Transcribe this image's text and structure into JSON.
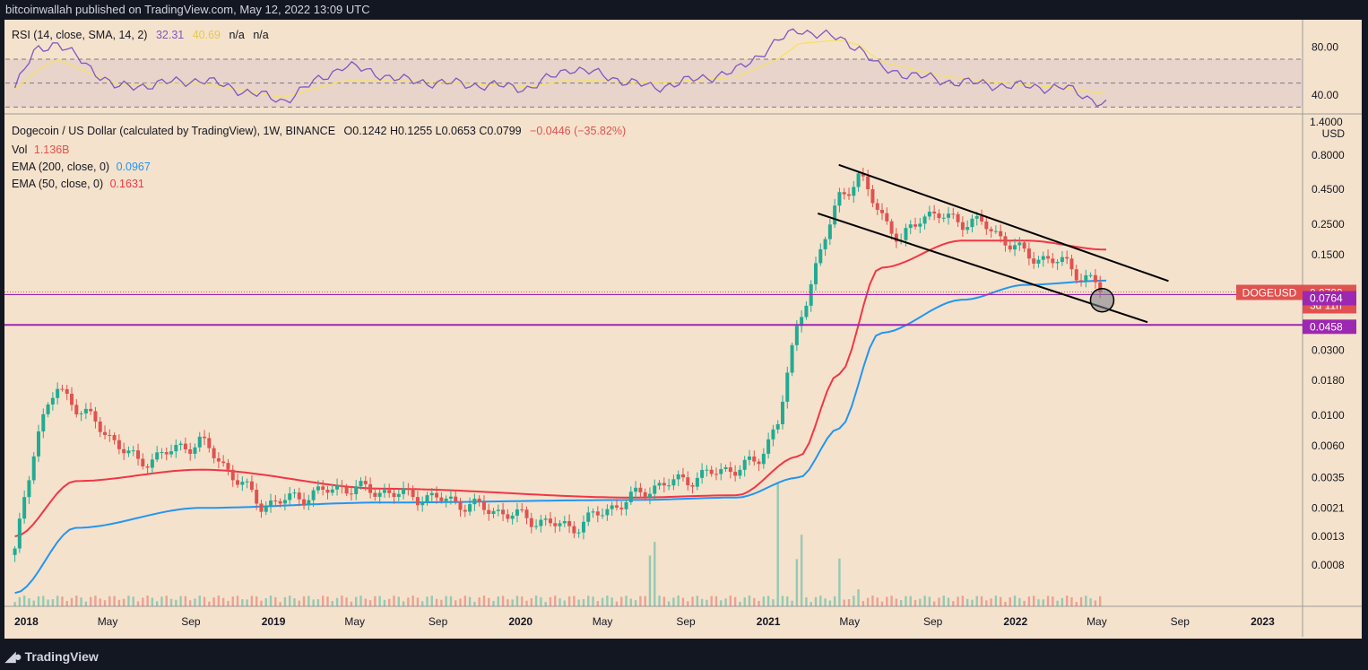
{
  "header": {
    "published": "bitcoinwallah published on TradingView.com, May 12, 2022 13:09 UTC"
  },
  "footer": {
    "brand": "TradingView",
    "logo_icon": "tradingview-logo-icon"
  },
  "rsi_legend": {
    "name": "RSI (14, close, SMA, 14, 2)",
    "v1": "32.31",
    "v2": "40.69",
    "v3": "n/a",
    "v4": "n/a"
  },
  "main_legend": {
    "symbol": "Dogecoin / US Dollar (calculated by TradingView), 1W, BINANCE",
    "ohlc": "O0.1242  H0.1255  L0.0653  C0.0799",
    "change": "−0.0446 (−35.82%)",
    "vol_label": "Vol",
    "vol_value": "1.136B",
    "ema200_label": "EMA (200, close, 0)",
    "ema200_value": "0.0967",
    "ema50_label": "EMA (50, close, 0)",
    "ema50_value": "0.1631"
  },
  "price_axis": {
    "currency": "USD",
    "top_label": "1.4000"
  },
  "rsi_axis_labels": [
    "80.00",
    "40.00"
  ],
  "price_tag": {
    "symbol": "DOGEUSD",
    "price": "0.0799",
    "countdown": "3d 11h"
  },
  "level_tags": [
    "0.0764",
    "0.0458"
  ],
  "colors": {
    "background": "#f5e2cc",
    "up": "#22ab94",
    "down": "#e0524f",
    "ema50": "#f23645",
    "ema200": "#2196f3",
    "rsi": "#7e57c2",
    "rsi_sma": "#f7e06a",
    "level": "#9c27b0",
    "price_tag": "#e0524f"
  },
  "chart_data": [
    {
      "type": "line",
      "title": "RSI (14, close, SMA, 14, 2)",
      "ylim": [
        25,
        100
      ],
      "bands": [
        70,
        50,
        30
      ],
      "x": [
        "2017-12",
        "2018-01",
        "2018-02",
        "2018-05",
        "2018-09",
        "2019-01",
        "2019-04",
        "2019-07",
        "2020-01",
        "2020-03",
        "2020-07",
        "2020-11",
        "2021-01",
        "2021-02",
        "2021-04",
        "2021-05",
        "2021-06",
        "2021-09",
        "2021-12",
        "2022-03",
        "2022-05"
      ],
      "series": [
        {
          "name": "RSI",
          "values": [
            46,
            78,
            84,
            46,
            53,
            35,
            65,
            52,
            46,
            63,
            46,
            60,
            85,
            95,
            87,
            80,
            62,
            52,
            48,
            46,
            32
          ]
        },
        {
          "name": "SMA",
          "values": [
            44,
            60,
            70,
            49,
            50,
            38,
            52,
            52,
            47,
            53,
            50,
            55,
            70,
            83,
            86,
            82,
            68,
            56,
            50,
            46,
            41
          ]
        }
      ],
      "ytick_labels": [
        "80.00",
        "40.00"
      ]
    },
    {
      "type": "candlestick",
      "title": "Dogecoin / US Dollar (calculated by TradingView), 1W, BINANCE",
      "ylog": true,
      "ylim": [
        0.0004,
        1.4
      ],
      "x_ticks": [
        "2018",
        "May",
        "Sep",
        "2019",
        "May",
        "Sep",
        "2020",
        "May",
        "Sep",
        "2021",
        "May",
        "Sep",
        "2022",
        "May",
        "Sep",
        "2023"
      ],
      "y_ticks": [
        "0.8000",
        "0.4500",
        "0.2500",
        "0.1500",
        "0.0300",
        "0.0180",
        "0.0100",
        "0.0060",
        "0.0035",
        "0.0021",
        "0.0013",
        "0.0008"
      ],
      "key_points": {
        "x": [
          "2017-12",
          "2018-01",
          "2018-02",
          "2018-06",
          "2018-09",
          "2018-12",
          "2019-04",
          "2019-09",
          "2020-03",
          "2020-07",
          "2020-12",
          "2021-01",
          "2021-02",
          "2021-04",
          "2021-05",
          "2021-07",
          "2021-08",
          "2021-11",
          "2022-01",
          "2022-03",
          "2022-05"
        ],
        "close": [
          0.001,
          0.007,
          0.016,
          0.0045,
          0.0065,
          0.0022,
          0.003,
          0.0024,
          0.0015,
          0.003,
          0.0045,
          0.009,
          0.05,
          0.4,
          0.55,
          0.18,
          0.3,
          0.25,
          0.15,
          0.13,
          0.0799
        ]
      },
      "ema50": {
        "x": [
          "2017-12",
          "2018-03",
          "2018-09",
          "2019-06",
          "2020-06",
          "2020-11",
          "2021-02",
          "2021-04",
          "2021-06",
          "2021-10",
          "2022-01",
          "2022-05"
        ],
        "values": [
          0.0013,
          0.0033,
          0.004,
          0.0029,
          0.0025,
          0.0026,
          0.005,
          0.02,
          0.12,
          0.19,
          0.19,
          0.1631
        ]
      },
      "ema200": {
        "x": [
          "2017-12",
          "2018-03",
          "2018-09",
          "2019-06",
          "2020-06",
          "2020-11",
          "2021-02",
          "2021-04",
          "2021-06",
          "2021-10",
          "2022-01",
          "2022-05"
        ],
        "values": [
          0.0005,
          0.0015,
          0.0021,
          0.0023,
          0.0024,
          0.0025,
          0.0035,
          0.008,
          0.04,
          0.07,
          0.09,
          0.0967
        ]
      },
      "channel_upper": {
        "x": [
          "2021-04",
          "2022-08"
        ],
        "values": [
          0.68,
          0.096
        ]
      },
      "channel_lower": {
        "x": [
          "2021-03",
          "2022-07"
        ],
        "values": [
          0.3,
          0.048
        ]
      },
      "horizontal_levels": [
        0.0764,
        0.0458
      ],
      "current_price": 0.0799,
      "volume_spikes": {
        "x": [
          "2020-07",
          "2021-01",
          "2021-02",
          "2021-04",
          "2021-05"
        ],
        "relative": [
          0.3,
          0.65,
          0.35,
          0.3,
          0.1
        ]
      }
    }
  ]
}
